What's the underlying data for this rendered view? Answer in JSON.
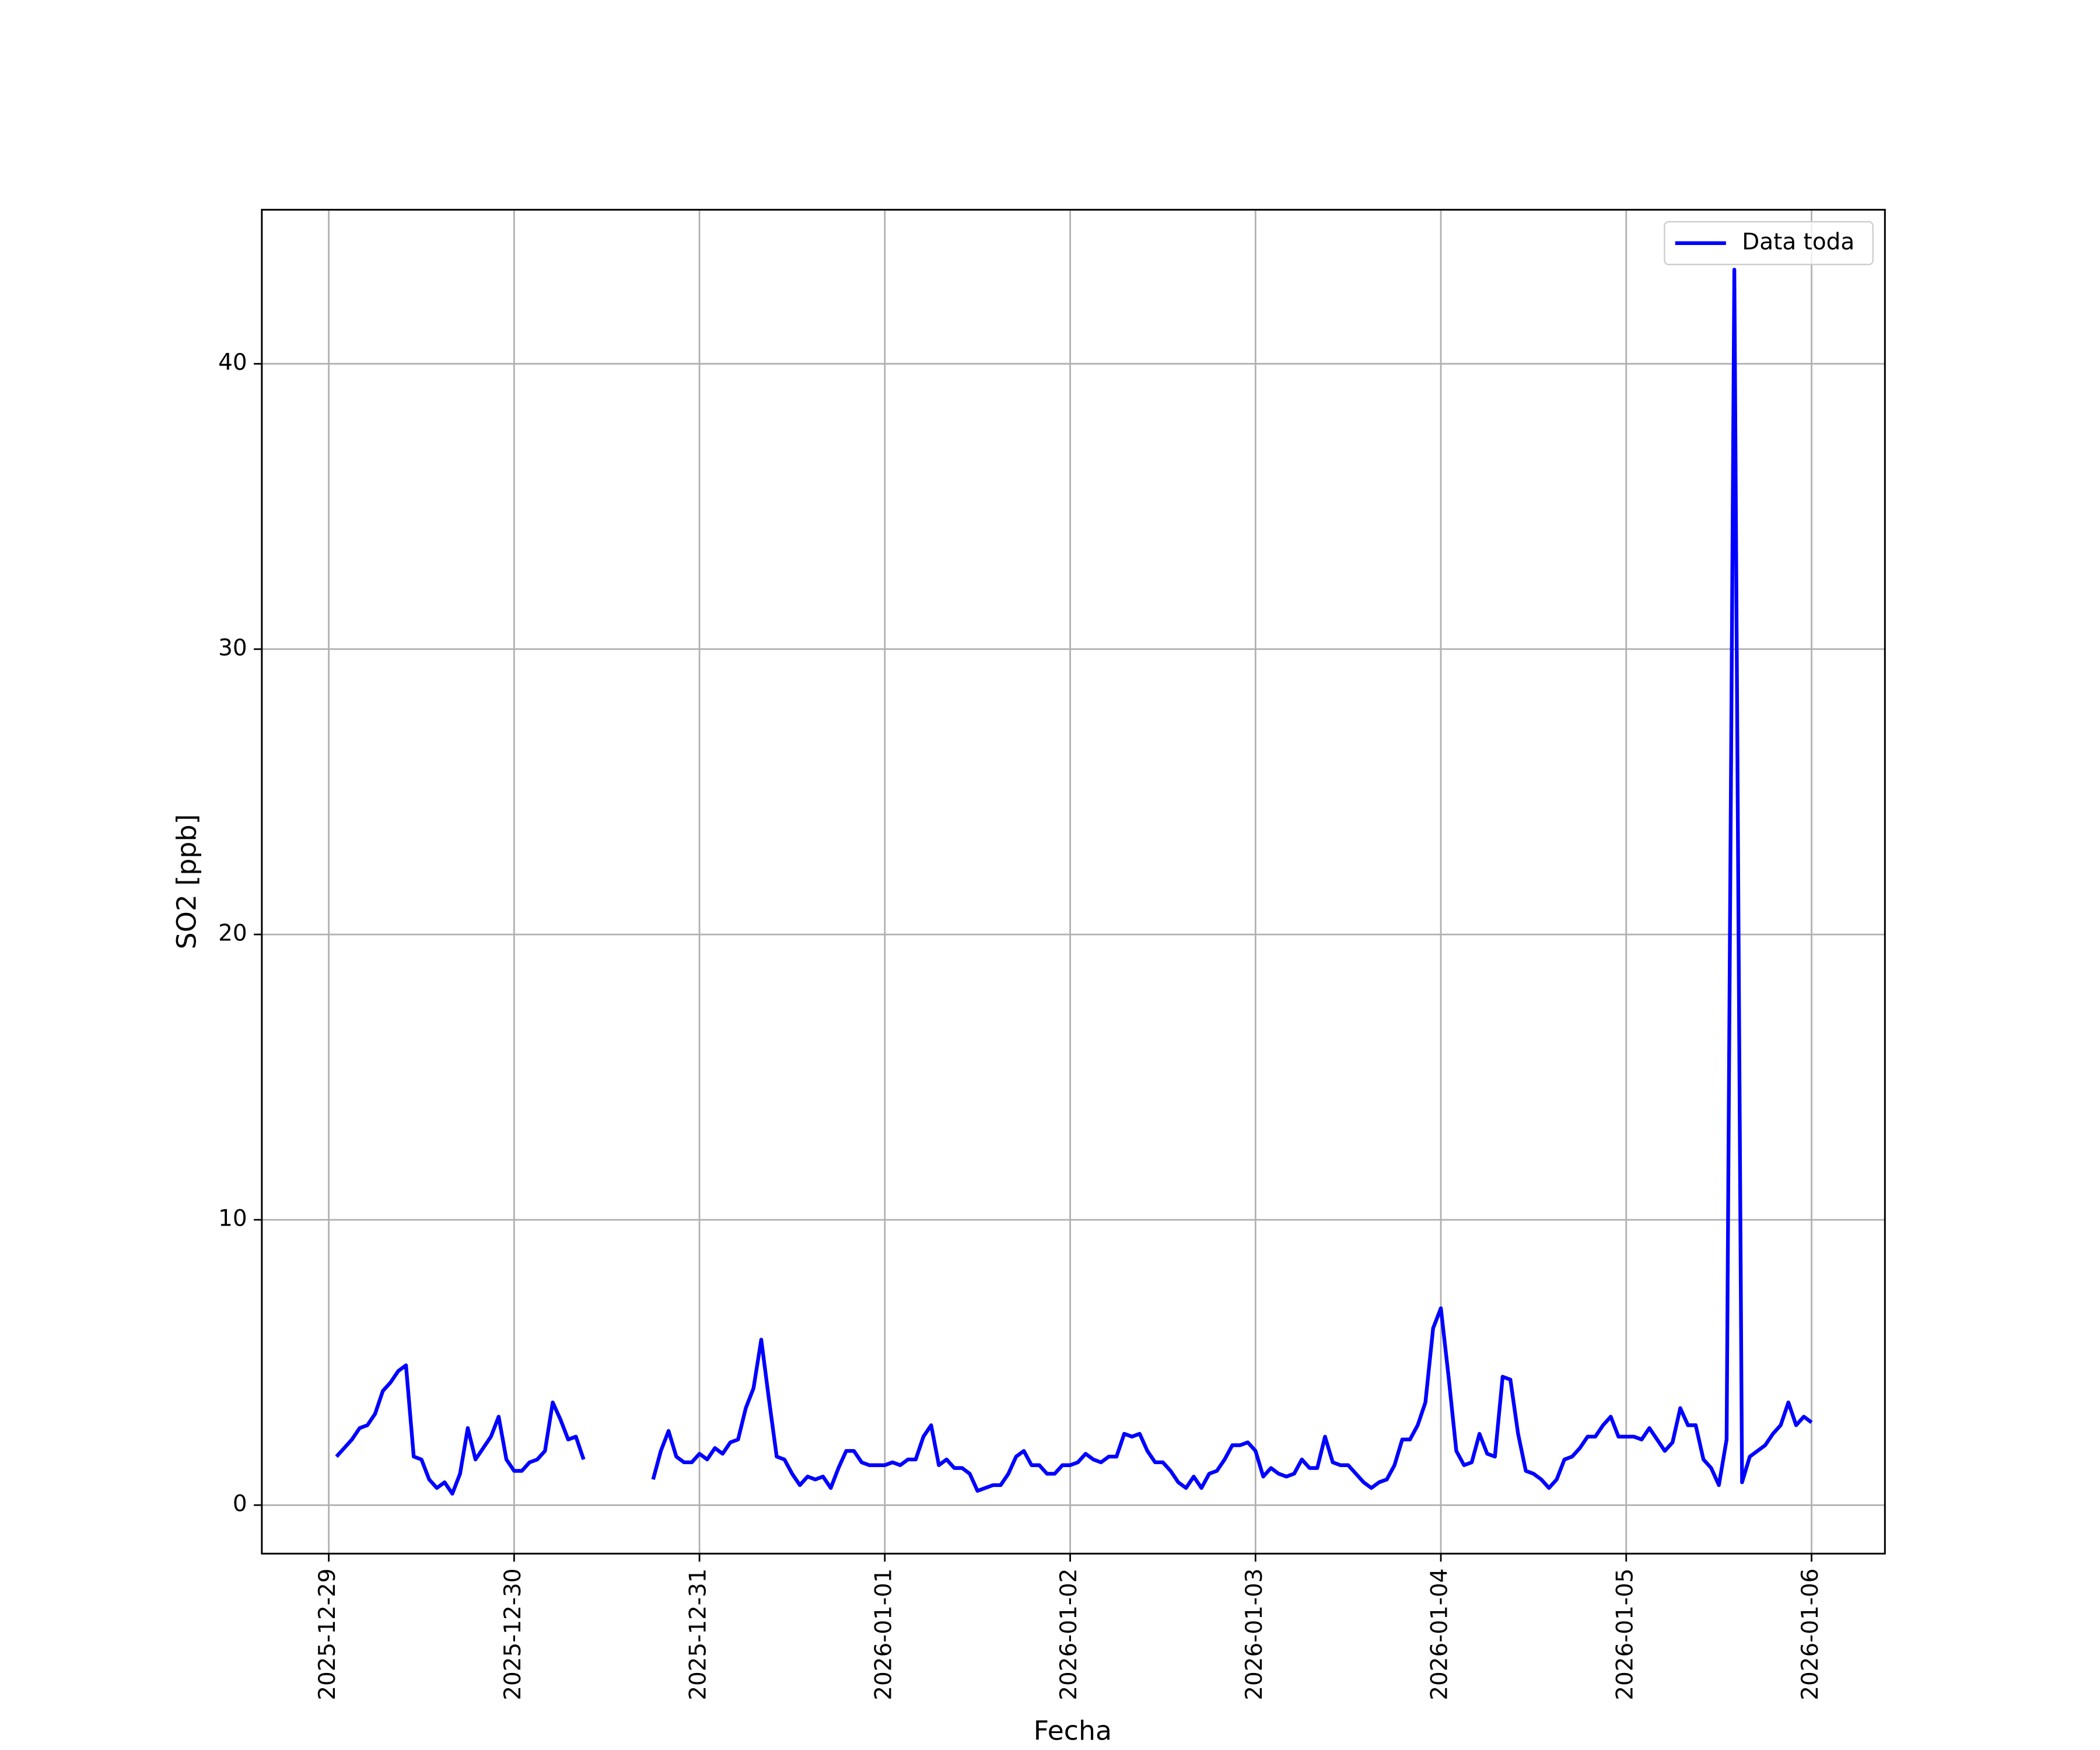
{
  "chart_data": {
    "type": "line",
    "xlabel": "Fecha",
    "ylabel": "SO2 [ppb]",
    "x": [
      "2025-12-29 01:00",
      "2025-12-29 02:00",
      "2025-12-29 03:00",
      "2025-12-29 04:00",
      "2025-12-29 05:00",
      "2025-12-29 06:00",
      "2025-12-29 07:00",
      "2025-12-29 08:00",
      "2025-12-29 09:00",
      "2025-12-29 10:00",
      "2025-12-29 11:00",
      "2025-12-29 12:00",
      "2025-12-29 13:00",
      "2025-12-29 14:00",
      "2025-12-29 15:00",
      "2025-12-29 16:00",
      "2025-12-29 17:00",
      "2025-12-29 18:00",
      "2025-12-29 19:00",
      "2025-12-29 20:00",
      "2025-12-29 21:00",
      "2025-12-29 22:00",
      "2025-12-29 23:00",
      "2025-12-30 00:00",
      "2025-12-30 01:00",
      "2025-12-30 02:00",
      "2025-12-30 03:00",
      "2025-12-30 04:00",
      "2025-12-30 05:00",
      "2025-12-30 06:00",
      "2025-12-30 07:00",
      "2025-12-30 08:00",
      "2025-12-30 09:00",
      "2025-12-30 10:00",
      "2025-12-30 11:00",
      "2025-12-30 12:00",
      "2025-12-30 13:00",
      "2025-12-30 14:00",
      "2025-12-30 15:00",
      "2025-12-30 16:00",
      "2025-12-30 17:00",
      "2025-12-30 18:00",
      "2025-12-30 19:00",
      "2025-12-30 20:00",
      "2025-12-30 21:00",
      "2025-12-30 22:00",
      "2025-12-30 23:00",
      "2025-12-31 00:00",
      "2025-12-31 01:00",
      "2025-12-31 02:00",
      "2025-12-31 03:00",
      "2025-12-31 04:00",
      "2025-12-31 05:00",
      "2025-12-31 06:00",
      "2025-12-31 07:00",
      "2025-12-31 08:00",
      "2025-12-31 09:00",
      "2025-12-31 10:00",
      "2025-12-31 11:00",
      "2025-12-31 12:00",
      "2025-12-31 13:00",
      "2025-12-31 14:00",
      "2025-12-31 15:00",
      "2025-12-31 16:00",
      "2025-12-31 17:00",
      "2025-12-31 18:00",
      "2025-12-31 19:00",
      "2025-12-31 20:00",
      "2025-12-31 21:00",
      "2025-12-31 22:00",
      "2025-12-31 23:00",
      "2026-01-01 00:00",
      "2026-01-01 01:00",
      "2026-01-01 02:00",
      "2026-01-01 03:00",
      "2026-01-01 04:00",
      "2026-01-01 05:00",
      "2026-01-01 06:00",
      "2026-01-01 07:00",
      "2026-01-01 08:00",
      "2026-01-01 09:00",
      "2026-01-01 10:00",
      "2026-01-01 11:00",
      "2026-01-01 12:00",
      "2026-01-01 13:00",
      "2026-01-01 14:00",
      "2026-01-01 15:00",
      "2026-01-01 16:00",
      "2026-01-01 17:00",
      "2026-01-01 18:00",
      "2026-01-01 19:00",
      "2026-01-01 20:00",
      "2026-01-01 21:00",
      "2026-01-01 22:00",
      "2026-01-01 23:00",
      "2026-01-02 00:00",
      "2026-01-02 01:00",
      "2026-01-02 02:00",
      "2026-01-02 03:00",
      "2026-01-02 04:00",
      "2026-01-02 05:00",
      "2026-01-02 06:00",
      "2026-01-02 07:00",
      "2026-01-02 08:00",
      "2026-01-02 09:00",
      "2026-01-02 10:00",
      "2026-01-02 11:00",
      "2026-01-02 12:00",
      "2026-01-02 13:00",
      "2026-01-02 14:00",
      "2026-01-02 15:00",
      "2026-01-02 16:00",
      "2026-01-02 17:00",
      "2026-01-02 18:00",
      "2026-01-02 19:00",
      "2026-01-02 20:00",
      "2026-01-02 21:00",
      "2026-01-02 22:00",
      "2026-01-02 23:00",
      "2026-01-03 00:00",
      "2026-01-03 01:00",
      "2026-01-03 02:00",
      "2026-01-03 03:00",
      "2026-01-03 04:00",
      "2026-01-03 05:00",
      "2026-01-03 06:00",
      "2026-01-03 07:00",
      "2026-01-03 08:00",
      "2026-01-03 09:00",
      "2026-01-03 10:00",
      "2026-01-03 11:00",
      "2026-01-03 12:00",
      "2026-01-03 13:00",
      "2026-01-03 14:00",
      "2026-01-03 15:00",
      "2026-01-03 16:00",
      "2026-01-03 17:00",
      "2026-01-03 18:00",
      "2026-01-03 19:00",
      "2026-01-03 20:00",
      "2026-01-03 21:00",
      "2026-01-03 22:00",
      "2026-01-03 23:00",
      "2026-01-04 00:00",
      "2026-01-04 01:00",
      "2026-01-04 02:00",
      "2026-01-04 03:00",
      "2026-01-04 04:00",
      "2026-01-04 05:00",
      "2026-01-04 06:00",
      "2026-01-04 07:00",
      "2026-01-04 08:00",
      "2026-01-04 09:00",
      "2026-01-04 10:00",
      "2026-01-04 11:00",
      "2026-01-04 12:00",
      "2026-01-04 13:00",
      "2026-01-04 14:00",
      "2026-01-04 15:00",
      "2026-01-04 16:00",
      "2026-01-04 17:00",
      "2026-01-04 18:00",
      "2026-01-04 19:00",
      "2026-01-04 20:00",
      "2026-01-04 21:00",
      "2026-01-04 22:00",
      "2026-01-04 23:00",
      "2026-01-05 00:00",
      "2026-01-05 01:00",
      "2026-01-05 02:00",
      "2026-01-05 03:00",
      "2026-01-05 04:00",
      "2026-01-05 05:00",
      "2026-01-05 06:00",
      "2026-01-05 07:00",
      "2026-01-05 08:00",
      "2026-01-05 09:00",
      "2026-01-05 10:00",
      "2026-01-05 11:00",
      "2026-01-05 12:00",
      "2026-01-05 13:00",
      "2026-01-05 14:00",
      "2026-01-05 15:00",
      "2026-01-05 16:00",
      "2026-01-05 17:00",
      "2026-01-05 18:00",
      "2026-01-05 19:00",
      "2026-01-05 20:00",
      "2026-01-05 21:00",
      "2026-01-05 22:00",
      "2026-01-05 23:00",
      "2026-01-06 00:00"
    ],
    "series": [
      {
        "name": "Data toda",
        "color": "#0000ff",
        "values": [
          1.7,
          2.0,
          2.3,
          2.7,
          2.8,
          3.2,
          4.0,
          4.3,
          4.7,
          4.9,
          1.7,
          1.6,
          0.9,
          0.6,
          0.8,
          0.4,
          1.1,
          2.7,
          1.6,
          2.0,
          2.4,
          3.1,
          1.6,
          1.2,
          1.2,
          1.5,
          1.6,
          1.9,
          3.6,
          3.0,
          2.3,
          2.4,
          1.6,
          null,
          null,
          null,
          null,
          null,
          null,
          null,
          null,
          0.9,
          1.9,
          2.6,
          1.7,
          1.5,
          1.5,
          1.8,
          1.6,
          2.0,
          1.8,
          2.2,
          2.3,
          3.4,
          4.1,
          5.8,
          3.7,
          1.7,
          1.6,
          1.1,
          0.7,
          1.0,
          0.9,
          1.0,
          0.6,
          1.3,
          1.9,
          1.9,
          1.5,
          1.4,
          1.4,
          1.4,
          1.5,
          1.4,
          1.6,
          1.6,
          2.4,
          2.8,
          1.4,
          1.6,
          1.3,
          1.3,
          1.1,
          0.5,
          0.6,
          0.7,
          0.7,
          1.1,
          1.7,
          1.9,
          1.4,
          1.4,
          1.1,
          1.1,
          1.4,
          1.4,
          1.5,
          1.8,
          1.6,
          1.5,
          1.7,
          1.7,
          2.5,
          2.4,
          2.5,
          1.9,
          1.5,
          1.5,
          1.2,
          0.8,
          0.6,
          1.0,
          0.6,
          1.1,
          1.2,
          1.6,
          2.1,
          2.1,
          2.2,
          1.9,
          1.0,
          1.3,
          1.1,
          1.0,
          1.1,
          1.6,
          1.3,
          1.3,
          2.4,
          1.5,
          1.4,
          1.4,
          1.1,
          0.8,
          0.6,
          0.8,
          0.9,
          1.4,
          2.3,
          2.3,
          2.8,
          3.6,
          6.2,
          6.9,
          4.5,
          1.9,
          1.4,
          1.5,
          2.5,
          1.8,
          1.7,
          4.5,
          4.4,
          2.5,
          1.2,
          1.1,
          0.9,
          0.6,
          0.9,
          1.6,
          1.7,
          2.0,
          2.4,
          2.4,
          2.8,
          3.1,
          2.4,
          2.4,
          2.4,
          2.3,
          2.7,
          2.3,
          1.9,
          2.2,
          3.4,
          2.8,
          2.8,
          1.6,
          1.3,
          0.7,
          2.3,
          43.3,
          0.8,
          1.7,
          1.9,
          2.1,
          2.5,
          2.8,
          3.6,
          2.8,
          3.1,
          2.9
        ]
      }
    ],
    "xlim": [
      "2025-12-28 15:20",
      "2026-01-06 09:30"
    ],
    "xticks": [
      "2025-12-29",
      "2025-12-30",
      "2025-12-31",
      "2026-01-01",
      "2026-01-02",
      "2026-01-03",
      "2026-01-04",
      "2026-01-05",
      "2026-01-06"
    ],
    "ylim": [
      -1.7,
      45.4
    ],
    "yticks": [
      0,
      10,
      20,
      30,
      40
    ],
    "grid": true,
    "legend": "upper right"
  }
}
